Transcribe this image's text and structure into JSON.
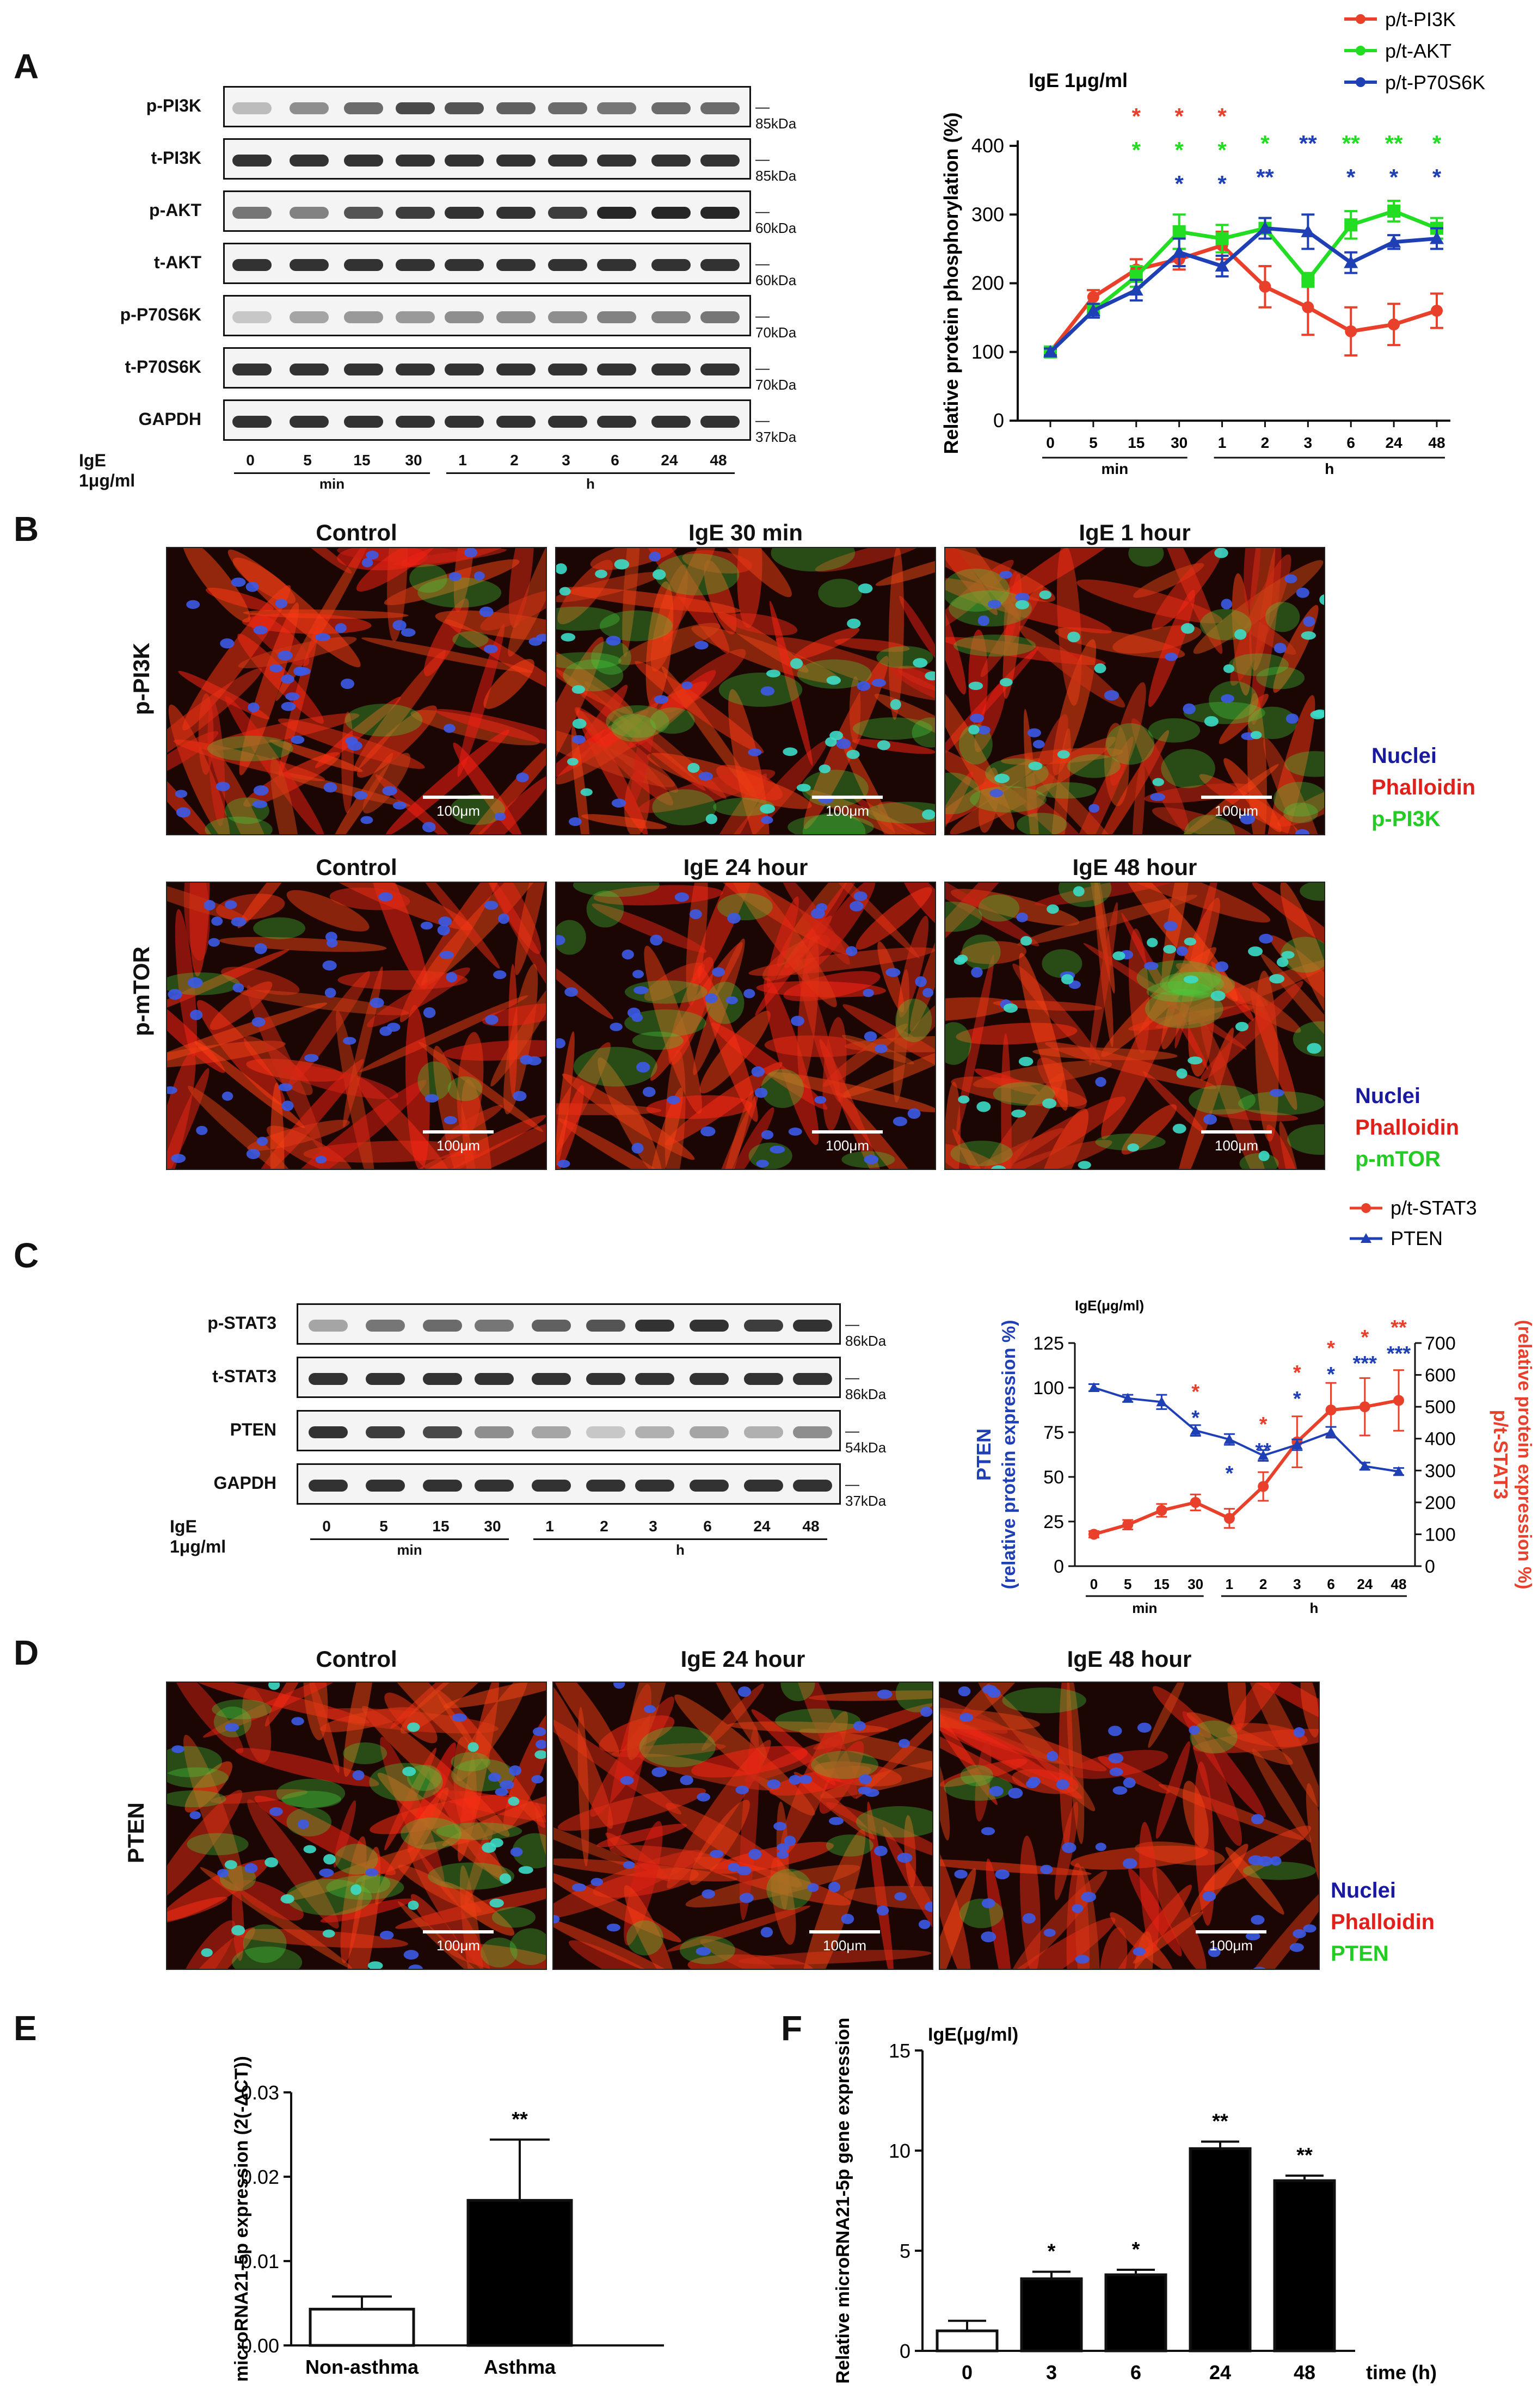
{
  "panels": {
    "A": {
      "letter": "A",
      "blot_labels": [
        "p-PI3K",
        "t-PI3K",
        "p-AKT",
        "t-AKT",
        "p-P70S6K",
        "t-P70S6K",
        "GAPDH"
      ],
      "kda": [
        "85kDa",
        "85kDa",
        "60kDa",
        "60kDa",
        "70kDa",
        "70kDa",
        "37kDa"
      ],
      "treatment": "IgE 1μg/ml",
      "lanes": [
        "0",
        "5",
        "15",
        "30",
        "1",
        "2",
        "3",
        "6",
        "24",
        "48"
      ],
      "unit_min": "min",
      "unit_h": "h"
    },
    "B": {
      "letter": "B",
      "row1_label": "p-PI3K",
      "row2_label": "p-mTOR",
      "row1_titles": [
        "Control",
        "IgE 30 min",
        "IgE 1 hour"
      ],
      "row2_titles": [
        "Control",
        "IgE 24 hour",
        "IgE 48 hour"
      ],
      "scale": "100μm",
      "legend1": [
        "Nuclei",
        "Phalloidin",
        "p-PI3K"
      ],
      "legend2": [
        "Nuclei",
        "Phalloidin",
        "p-mTOR"
      ]
    },
    "C": {
      "letter": "C",
      "blot_labels": [
        "p-STAT3",
        "t-STAT3",
        "PTEN",
        "GAPDH"
      ],
      "kda": [
        "86kDa",
        "86kDa",
        "54kDa",
        "37kDa"
      ],
      "treatment": "IgE 1μg/ml",
      "lanes": [
        "0",
        "5",
        "15",
        "30",
        "1",
        "2",
        "3",
        "6",
        "24",
        "48"
      ],
      "unit_min": "min",
      "unit_h": "h"
    },
    "D": {
      "letter": "D",
      "row_label": "PTEN",
      "titles": [
        "Control",
        "IgE 24 hour",
        "IgE 48 hour"
      ],
      "scale": "100μm",
      "legend": [
        "Nuclei",
        "Phalloidin",
        "PTEN"
      ]
    },
    "E": {
      "letter": "E"
    },
    "F": {
      "letter": "F"
    }
  },
  "colors": {
    "red": "#e8402a",
    "green": "#22dd22",
    "blue": "#1f3fb5",
    "legend_blue": "#1a1aa0",
    "legend_red": "#e0201a",
    "legend_green": "#22cc22"
  },
  "chart_data": [
    {
      "id": "A",
      "type": "line",
      "annotation": "IgE 1μg/ml",
      "ylabel": "Relative protein phosphorylation (%)",
      "ylim": [
        0,
        400
      ],
      "yticks": [
        0,
        100,
        200,
        300,
        400
      ],
      "categories": [
        "0",
        "5",
        "15",
        "30",
        "1",
        "2",
        "3",
        "6",
        "24",
        "48"
      ],
      "group_labels": [
        "min",
        "h"
      ],
      "legend_position": "top-right",
      "series": [
        {
          "name": "p/t-PI3K",
          "color": "#e8402a",
          "values": [
            100,
            180,
            220,
            235,
            255,
            195,
            165,
            130,
            140,
            160
          ],
          "errors": [
            5,
            10,
            15,
            15,
            20,
            30,
            40,
            35,
            30,
            25
          ]
        },
        {
          "name": "p/t-AKT",
          "color": "#22dd22",
          "values": [
            100,
            160,
            210,
            275,
            265,
            280,
            205,
            285,
            305,
            280
          ],
          "errors": [
            5,
            10,
            15,
            25,
            20,
            15,
            10,
            20,
            15,
            15
          ]
        },
        {
          "name": "p/t-P70S6K",
          "color": "#1f3fb5",
          "values": [
            100,
            160,
            190,
            245,
            225,
            280,
            275,
            230,
            260,
            265
          ],
          "errors": [
            5,
            10,
            15,
            20,
            15,
            15,
            25,
            15,
            10,
            15
          ]
        }
      ],
      "significance": [
        {
          "index": 3,
          "rows": [
            {
              "text": "*",
              "color": "#e8402a"
            },
            {
              "text": "*",
              "color": "#22dd22"
            },
            {
              "text": "*",
              "color": "#1f3fb5"
            }
          ]
        },
        {
          "index": 2,
          "rows": [
            {
              "text": "*",
              "color": "#e8402a"
            },
            {
              "text": "*",
              "color": "#22dd22"
            }
          ]
        },
        {
          "index": 4,
          "rows": [
            {
              "text": "*",
              "color": "#e8402a"
            },
            {
              "text": "*",
              "color": "#22dd22"
            },
            {
              "text": "*",
              "color": "#1f3fb5"
            }
          ]
        },
        {
          "index": 5,
          "rows": [
            {
              "text": "*",
              "color": "#22dd22"
            },
            {
              "text": "**",
              "color": "#1f3fb5"
            }
          ]
        },
        {
          "index": 6,
          "rows": [
            {
              "text": "**",
              "color": "#1f3fb5"
            }
          ]
        },
        {
          "index": 7,
          "rows": [
            {
              "text": "**",
              "color": "#22dd22"
            },
            {
              "text": "*",
              "color": "#1f3fb5"
            }
          ]
        },
        {
          "index": 8,
          "rows": [
            {
              "text": "**",
              "color": "#22dd22"
            },
            {
              "text": "*",
              "color": "#1f3fb5"
            }
          ]
        },
        {
          "index": 9,
          "rows": [
            {
              "text": "*",
              "color": "#22dd22"
            },
            {
              "text": "*",
              "color": "#1f3fb5"
            }
          ]
        }
      ]
    },
    {
      "id": "C",
      "type": "line",
      "annotation": "IgE(μg/ml)",
      "ylabel_left": [
        "PTEN",
        "(relative protein expression %)"
      ],
      "ylabel_right": [
        "p/t-STAT3",
        "(relative protein expression %)"
      ],
      "ylim_left": [
        0,
        125
      ],
      "yticks_left": [
        0,
        25,
        50,
        75,
        100,
        125
      ],
      "ylim_right": [
        0,
        700
      ],
      "yticks_right": [
        0,
        100,
        200,
        300,
        400,
        500,
        600,
        700
      ],
      "categories": [
        "0",
        "5",
        "15",
        "30",
        "1",
        "2",
        "3",
        "6",
        "24",
        "48"
      ],
      "group_labels": [
        "min",
        "h"
      ],
      "legend_position": "top-right",
      "series": [
        {
          "name": "p/t-STAT3",
          "axis": "right",
          "color": "#e8402a",
          "values": [
            100,
            130,
            175,
            200,
            150,
            250,
            390,
            490,
            500,
            520
          ],
          "errors": [
            10,
            15,
            20,
            25,
            30,
            45,
            80,
            85,
            90,
            95
          ]
        },
        {
          "name": "PTEN",
          "axis": "left",
          "color": "#1f3fb5",
          "values": [
            100,
            94,
            92,
            76,
            71,
            62,
            68,
            75,
            56,
            53
          ],
          "errors": [
            2,
            2,
            4,
            3,
            3,
            3,
            3,
            3,
            2,
            2
          ]
        }
      ],
      "significance": [
        {
          "index": 3,
          "rows": [
            {
              "text": "*",
              "color": "#e8402a"
            },
            {
              "text": "*",
              "color": "#1f3fb5"
            }
          ]
        },
        {
          "index": 4,
          "rows": [
            {
              "text": "*",
              "color": "#1f3fb5"
            }
          ]
        },
        {
          "index": 5,
          "rows": [
            {
              "text": "*",
              "color": "#e8402a"
            },
            {
              "text": "**",
              "color": "#1f3fb5"
            }
          ]
        },
        {
          "index": 6,
          "rows": [
            {
              "text": "*",
              "color": "#e8402a"
            },
            {
              "text": "*",
              "color": "#1f3fb5"
            }
          ]
        },
        {
          "index": 7,
          "rows": [
            {
              "text": "*",
              "color": "#e8402a"
            },
            {
              "text": "*",
              "color": "#1f3fb5"
            }
          ]
        },
        {
          "index": 8,
          "rows": [
            {
              "text": "*",
              "color": "#e8402a"
            },
            {
              "text": "***",
              "color": "#1f3fb5"
            }
          ]
        },
        {
          "index": 9,
          "rows": [
            {
              "text": "**",
              "color": "#e8402a"
            },
            {
              "text": "***",
              "color": "#1f3fb5"
            }
          ]
        }
      ]
    },
    {
      "id": "E",
      "type": "bar",
      "ylabel": "microRNA21-5p expression (2(-ΔCT))",
      "ylim": [
        0,
        0.03
      ],
      "yticks": [
        "0.00",
        "0.01",
        "0.02",
        "0.03"
      ],
      "categories": [
        "Non-asthma",
        "Asthma"
      ],
      "values": [
        0.0043,
        0.0172
      ],
      "errors": [
        0.0015,
        0.0072
      ],
      "fills": [
        "#ffffff",
        "#000000"
      ],
      "significance": [
        "",
        "**"
      ]
    },
    {
      "id": "F",
      "type": "bar",
      "annotation": "IgE(μg/ml)",
      "ylabel": "Relative microRNA21-5p gene expression",
      "xlabel": "time (h)",
      "ylim": [
        0,
        15
      ],
      "yticks": [
        "0",
        "5",
        "10",
        "15"
      ],
      "categories": [
        "0",
        "3",
        "6",
        "24",
        "48"
      ],
      "values": [
        1.0,
        3.6,
        3.8,
        10.1,
        8.5
      ],
      "errors": [
        0.5,
        0.35,
        0.25,
        0.35,
        0.25
      ],
      "fills": [
        "#ffffff",
        "#000000",
        "#000000",
        "#000000",
        "#000000"
      ],
      "significance": [
        "",
        "*",
        "*",
        "**",
        "**"
      ]
    }
  ]
}
